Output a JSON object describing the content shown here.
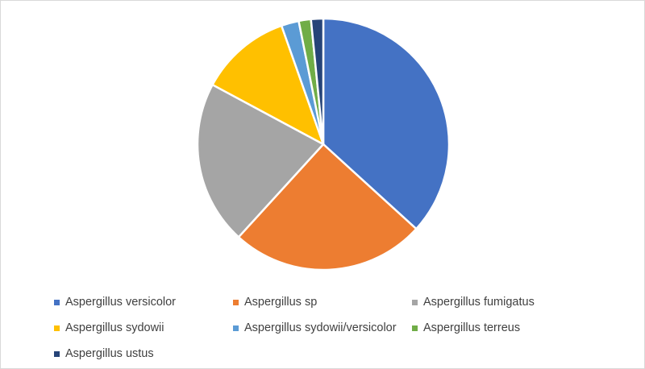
{
  "chart_data": {
    "type": "pie",
    "title": "",
    "start_angle_deg": 0,
    "direction": "clockwise",
    "legend_position": "bottom",
    "slices": [
      {
        "label": "Aspergillus versicolor",
        "value": 37.5,
        "color": "#4472C4"
      },
      {
        "label": "Aspergillus sp",
        "value": 25.5,
        "color": "#ED7D31"
      },
      {
        "label": "Aspergillus fumigatus",
        "value": 21.5,
        "color": "#A5A5A5"
      },
      {
        "label": "Aspergillus sydowii",
        "value": 12.0,
        "color": "#FFC000"
      },
      {
        "label": "Aspergillus sydowii/versicolor",
        "value": 2.3,
        "color": "#5B9BD5"
      },
      {
        "label": "Aspergillus terreus",
        "value": 1.6,
        "color": "#70AD47"
      },
      {
        "label": "Aspergillus ustus",
        "value": 1.6,
        "color": "#264478"
      }
    ]
  }
}
